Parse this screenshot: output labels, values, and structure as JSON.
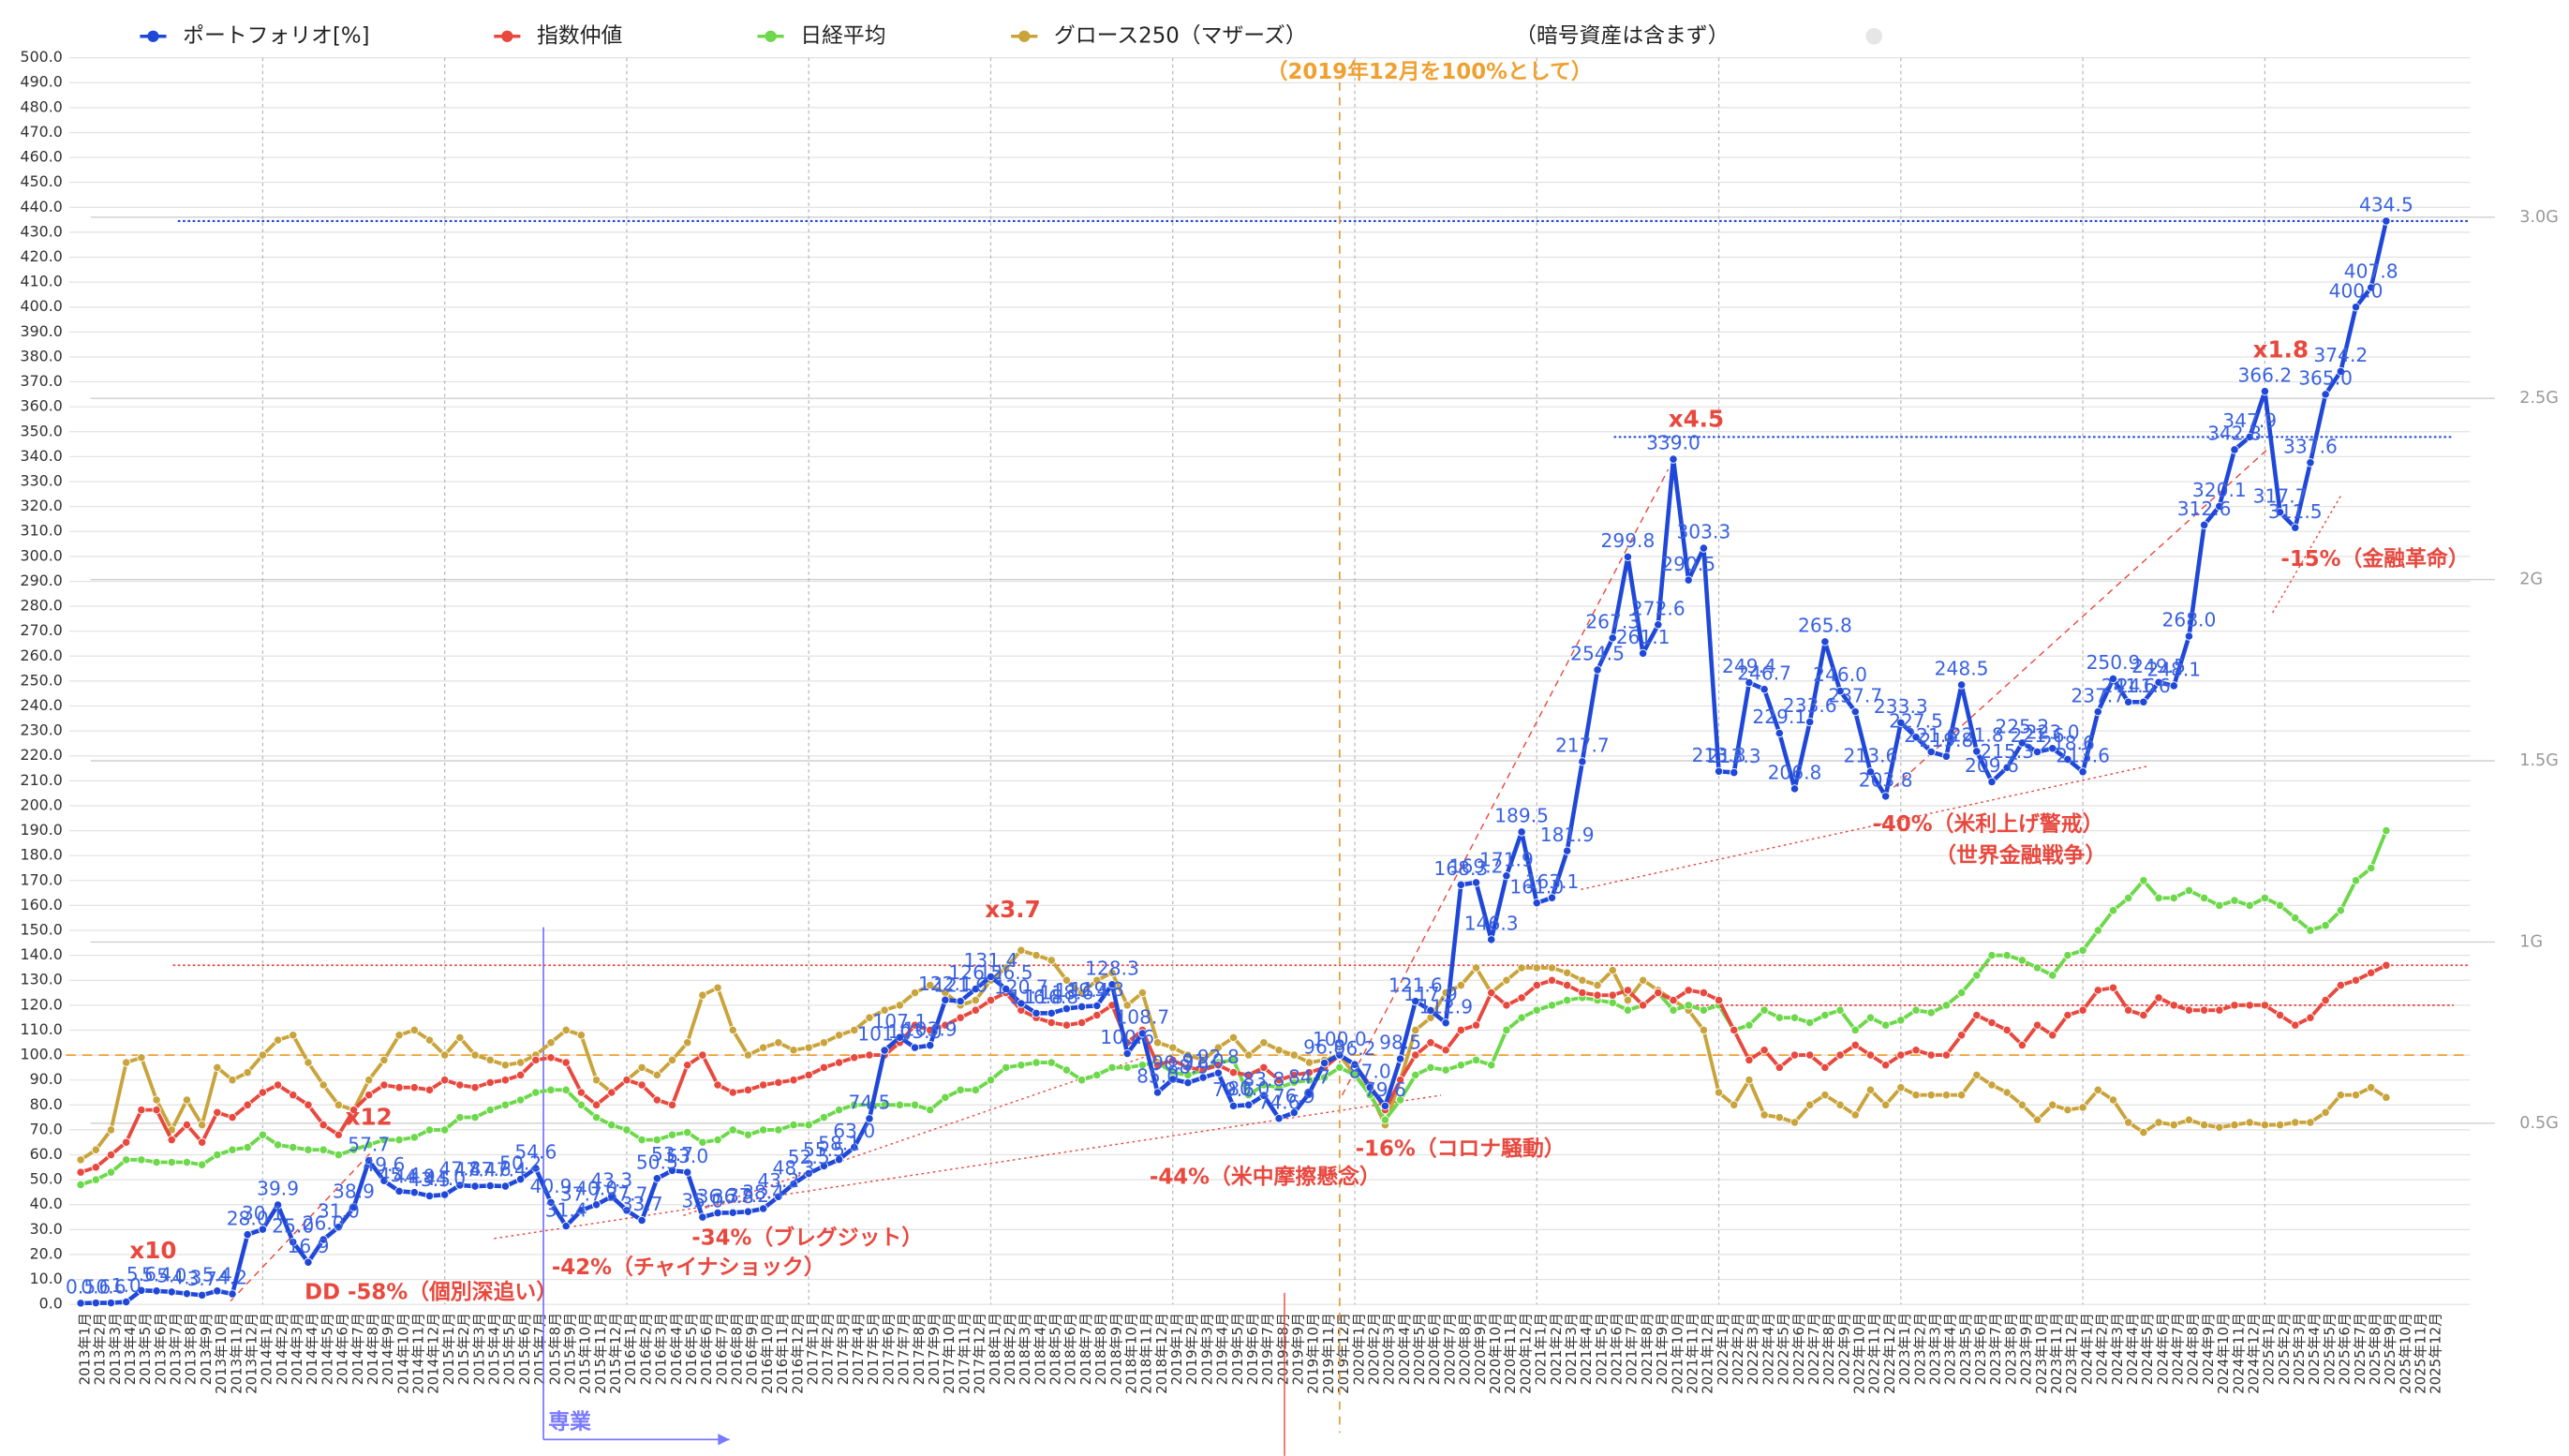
{
  "chart_data": {
    "type": "line",
    "annotations": [
      "（2019年12月を100%として）",
      "（暗号資産は含まず）",
      "x10",
      "x12",
      "x3.7",
      "x4.5",
      "x1.8",
      "DD -58%（個別深追い）",
      "-42%（チャイナショック）",
      "-34%（ブレグジット）",
      "-44%（米中摩擦懸念）",
      "-16%（コロナ騒動）",
      "-40%（米利上げ警戒）",
      "（世界金融戦争）",
      "-15%（金融革命）",
      "専業"
    ],
    "categories": [
      "2013年1月",
      "2013年2月",
      "2013年3月",
      "2013年4月",
      "2013年5月",
      "2013年6月",
      "2013年7月",
      "2013年8月",
      "2013年9月",
      "2013年10月",
      "2013年11月",
      "2013年12月",
      "2014年1月",
      "2014年2月",
      "2014年3月",
      "2014年4月",
      "2014年5月",
      "2014年6月",
      "2014年7月",
      "2014年8月",
      "2014年9月",
      "2014年10月",
      "2014年11月",
      "2014年12月",
      "2015年1月",
      "2015年2月",
      "2015年3月",
      "2015年4月",
      "2015年5月",
      "2015年6月",
      "2015年7月",
      "2015年8月",
      "2015年9月",
      "2015年10月",
      "2015年11月",
      "2015年12月",
      "2016年1月",
      "2016年2月",
      "2016年3月",
      "2016年4月",
      "2016年5月",
      "2016年6月",
      "2016年7月",
      "2016年8月",
      "2016年9月",
      "2016年10月",
      "2016年11月",
      "2016年12月",
      "2017年1月",
      "2017年2月",
      "2017年3月",
      "2017年4月",
      "2017年5月",
      "2017年6月",
      "2017年7月",
      "2017年8月",
      "2017年9月",
      "2017年10月",
      "2017年11月",
      "2017年12月",
      "2018年1月",
      "2018年2月",
      "2018年3月",
      "2018年4月",
      "2018年5月",
      "2018年6月",
      "2018年7月",
      "2018年8月",
      "2018年9月",
      "2018年10月",
      "2018年11月",
      "2018年12月",
      "2019年1月",
      "2019年2月",
      "2019年3月",
      "2019年4月",
      "2019年5月",
      "2019年6月",
      "2019年7月",
      "2019年8月",
      "2019年9月",
      "2019年10月",
      "2019年11月",
      "2019年12月",
      "2020年1月",
      "2020年2月",
      "2020年3月",
      "2020年4月",
      "2020年5月",
      "2020年6月",
      "2020年7月",
      "2020年8月",
      "2020年9月",
      "2020年10月",
      "2020年11月",
      "2020年12月",
      "2021年1月",
      "2021年2月",
      "2021年3月",
      "2021年4月",
      "2021年5月",
      "2021年6月",
      "2021年7月",
      "2021年8月",
      "2021年9月",
      "2021年10月",
      "2021年11月",
      "2021年12月",
      "2022年1月",
      "2022年2月",
      "2022年3月",
      "2022年4月",
      "2022年5月",
      "2022年6月",
      "2022年7月",
      "2022年8月",
      "2022年9月",
      "2022年10月",
      "2022年11月",
      "2022年12月",
      "2023年1月",
      "2023年2月",
      "2023年3月",
      "2023年4月",
      "2023年5月",
      "2023年6月",
      "2023年7月",
      "2023年8月",
      "2023年9月",
      "2023年10月",
      "2023年11月",
      "2023年12月",
      "2024年1月",
      "2024年2月",
      "2024年3月",
      "2024年4月",
      "2024年5月",
      "2024年6月",
      "2024年7月",
      "2024年8月",
      "2024年9月",
      "2024年10月",
      "2024年11月",
      "2024年12月",
      "2025年1月",
      "2025年2月",
      "2025年3月",
      "2025年4月",
      "2025年5月",
      "2025年6月",
      "2025年7月",
      "2025年8月",
      "2025年9月",
      "2025年10月",
      "2025年11月",
      "2025年12月"
    ],
    "series": [
      {
        "name": "ポートフォリオ[%]",
        "color": "#1f48d8",
        "label_color": "#3a62e0",
        "values": [
          0.5,
          0.6,
          0.6,
          1.0,
          5.6,
          5.4,
          5.0,
          4.3,
          3.7,
          5.4,
          4.2,
          28.0,
          30.1,
          39.9,
          25.0,
          16.9,
          26.0,
          31.0,
          38.9,
          57.7,
          49.6,
          45.4,
          44.9,
          43.5,
          44.0,
          47.8,
          47.4,
          47.6,
          47.4,
          50.2,
          54.6,
          40.9,
          31.4,
          37.7,
          40.0,
          43.3,
          37.7,
          33.7,
          50.5,
          53.7,
          53.0,
          35.0,
          36.7,
          36.8,
          37.2,
          38.4,
          43.2,
          48.3,
          52.5,
          55.5,
          58.1,
          63.0,
          74.5,
          101.9,
          107.1,
          103.0,
          103.9,
          122.1,
          121.6,
          126.5,
          131.4,
          126.5,
          120.7,
          116.8,
          116.8,
          118.6,
          119.4,
          119.8,
          128.3,
          100.6,
          108.7,
          85.0,
          90.3,
          88.9,
          91.0,
          92.8,
          79.6,
          80.0,
          83.8,
          74.6,
          76.9,
          84.7,
          96.8,
          100.0,
          96.2,
          87.0,
          79.6,
          98.5,
          121.6,
          117.9,
          112.9,
          168.3,
          169.2,
          146.3,
          171.9,
          189.5,
          161.0,
          163.1,
          181.9,
          217.7,
          254.5,
          267.3,
          299.8,
          261.1,
          272.6,
          339.0,
          290.5,
          303.3,
          213.8,
          213.3,
          249.4,
          246.7,
          229.1,
          206.8,
          233.6,
          265.8,
          246.0,
          237.7,
          213.6,
          203.8,
          233.3,
          227.5,
          221.6,
          219.8,
          248.5,
          221.8,
          209.6,
          215.3,
          225.2,
          221.6,
          223.0,
          218.6,
          213.6,
          237.7,
          250.9,
          241.6,
          241.6,
          249.5,
          248.1,
          268.0,
          312.6,
          320.1,
          342.8,
          347.9,
          366.2,
          317.7,
          311.5,
          337.6,
          365.0,
          374.2,
          400.0,
          407.8,
          434.5,
          null,
          null,
          null
        ],
        "value_labels": [
          "0.5",
          "0.6",
          "0.6",
          "1.0",
          "5.6",
          "5.4",
          "5.0",
          "4.3",
          "3.7",
          "5.4",
          "4.2",
          "28.0",
          "30.1",
          "39.9",
          "25.0",
          "16.9",
          "26.0",
          "31.0",
          "38.9",
          "57.7",
          "49.6",
          "45.4",
          "44.9",
          "43.5",
          "44.0",
          "47.8",
          "47.4",
          "47.6",
          "47.4",
          "50.2",
          "54.6",
          "40.9",
          "31.4",
          "37.7",
          "40.0",
          "43.3",
          "37.7",
          "33.7",
          "50.5",
          "53.7",
          "53.0",
          "35.0",
          "36.7",
          "36.8",
          "37.2",
          "38.4",
          "43.2",
          "48.3",
          "52.5",
          "55.5",
          "58.1",
          "63.0",
          "74.5",
          "101.9",
          "107.1",
          "103.0",
          "103.9",
          "122.1",
          "121.6",
          "126.5",
          "131.4",
          "126.5",
          "120.7",
          "116.8",
          "116.8",
          "118.6",
          "119.4",
          "119.8",
          "128.3",
          "100.6",
          "108.7",
          "85.0",
          "90.3",
          "88.9",
          "91.0",
          "92.8",
          "79.6",
          "80.0",
          "83.8",
          "74.6",
          "76.9",
          "84.7",
          "96.8",
          "100.0",
          "96.2",
          "87.0",
          "79.6",
          "98.5",
          "121.6",
          "117.9",
          "112.9",
          "168.3",
          "169.2",
          "146.3",
          "171.9",
          "189.5",
          "161.0",
          "163.1",
          "181.9",
          "217.7",
          "254.5",
          "267.3",
          "299.8",
          "261.1",
          "272.6",
          "339.0",
          "290.5",
          "303.3",
          "213.8",
          "213.3",
          "249.4",
          "246.7",
          "229.1",
          "206.8",
          "233.6",
          "265.8",
          "246.0",
          "237.7",
          "213.6",
          "203.8",
          "233.3",
          "227.5",
          "221.6",
          "219.8",
          "248.5",
          "221.8",
          "209.6",
          "215.3",
          "225.2",
          "221.6",
          "223.0",
          "218.6",
          "213.6",
          "237.7",
          "250.9",
          "241.6",
          "241.6",
          "249.5",
          "248.1",
          "268.0",
          "312.6",
          "320.1",
          "342.8",
          "347.9",
          "366.2",
          "317.7",
          "311.5",
          "337.6",
          "365.0",
          "374.2",
          "400.0",
          "407.8",
          "434.5",
          null,
          null,
          null
        ]
      },
      {
        "name": "指数仲値",
        "color": "#e8483e",
        "values": [
          53,
          55,
          60,
          65,
          78,
          78,
          66,
          72,
          65,
          77,
          75,
          80,
          85,
          88,
          84,
          80,
          72,
          68,
          78,
          84,
          88,
          87,
          87,
          86,
          90,
          88,
          87,
          89,
          90,
          92,
          98,
          99,
          97,
          85,
          80,
          85,
          90,
          88,
          82,
          80,
          96,
          100,
          88,
          85,
          86,
          88,
          89,
          90,
          92,
          95,
          97,
          99,
          100,
          100,
          105,
          112,
          110,
          112,
          115,
          118,
          122,
          125,
          118,
          115,
          113,
          112,
          113,
          116,
          120,
          105,
          110,
          96,
          98,
          95,
          94,
          96,
          93,
          92,
          95,
          90,
          92,
          93,
          95,
          100,
          96,
          88,
          78,
          90,
          100,
          105,
          102,
          110,
          112,
          125,
          120,
          123,
          128,
          130,
          128,
          125,
          124,
          124,
          126,
          120,
          125,
          122,
          126,
          125,
          122,
          110,
          98,
          102,
          95,
          100,
          100,
          95,
          100,
          104,
          100,
          96,
          100,
          102,
          100,
          100,
          108,
          116,
          113,
          110,
          104,
          112,
          108,
          116,
          118,
          126,
          127,
          118,
          116,
          123,
          120,
          118,
          118,
          118,
          120,
          120,
          120,
          116,
          112,
          115,
          122,
          128,
          130,
          133,
          136,
          null,
          null,
          null
        ]
      },
      {
        "name": "日経平均",
        "color": "#6cd84a",
        "values": [
          48,
          50,
          53,
          58,
          58,
          57,
          57,
          57,
          56,
          60,
          62,
          63,
          68,
          64,
          63,
          62,
          62,
          60,
          62,
          64,
          66,
          66,
          67,
          70,
          70,
          75,
          75,
          78,
          80,
          82,
          85,
          86,
          86,
          80,
          75,
          72,
          70,
          66,
          66,
          68,
          69,
          65,
          66,
          70,
          68,
          70,
          70,
          72,
          72,
          75,
          78,
          80,
          80,
          80,
          80,
          80,
          78,
          83,
          86,
          86,
          90,
          95,
          96,
          97,
          97,
          94,
          90,
          92,
          95,
          95,
          96,
          97,
          93,
          92,
          94,
          97,
          98,
          84,
          88,
          87,
          89,
          90,
          91,
          95,
          92,
          84,
          74,
          82,
          92,
          95,
          94,
          96,
          98,
          96,
          110,
          115,
          118,
          120,
          122,
          123,
          122,
          121,
          118,
          120,
          125,
          118,
          120,
          118,
          120,
          110,
          112,
          118,
          115,
          115,
          113,
          116,
          118,
          110,
          115,
          112,
          114,
          118,
          117,
          120,
          125,
          132,
          140,
          140,
          138,
          135,
          132,
          140,
          142,
          150,
          158,
          163,
          170,
          163,
          163,
          166,
          163,
          160,
          162,
          160,
          163,
          160,
          155,
          150,
          152,
          158,
          170,
          175,
          190,
          null,
          null,
          null
        ]
      },
      {
        "name": "グロース250（マザーズ）",
        "color": "#c9a43c",
        "values": [
          58,
          62,
          70,
          97,
          99,
          82,
          70,
          82,
          72,
          95,
          90,
          93,
          100,
          106,
          108,
          97,
          88,
          80,
          78,
          90,
          98,
          108,
          110,
          106,
          100,
          107,
          100,
          98,
          96,
          97,
          100,
          105,
          110,
          108,
          90,
          85,
          90,
          95,
          92,
          98,
          105,
          124,
          127,
          110,
          100,
          103,
          105,
          102,
          103,
          105,
          108,
          110,
          115,
          118,
          120,
          125,
          128,
          125,
          120,
          122,
          130,
          135,
          142,
          140,
          138,
          130,
          125,
          130,
          133,
          120,
          125,
          105,
          103,
          100,
          98,
          103,
          107,
          100,
          105,
          102,
          100,
          97,
          98,
          100,
          92,
          85,
          72,
          90,
          110,
          115,
          125,
          128,
          135,
          125,
          130,
          135,
          135,
          135,
          133,
          130,
          128,
          134,
          122,
          130,
          126,
          122,
          118,
          110,
          85,
          80,
          90,
          76,
          75,
          73,
          80,
          84,
          80,
          76,
          86,
          80,
          87,
          84,
          84,
          84,
          84,
          92,
          88,
          85,
          80,
          74,
          80,
          78,
          79,
          86,
          82,
          73,
          69,
          73,
          72,
          74,
          72,
          71,
          72,
          73,
          72,
          72,
          73,
          73,
          77,
          84,
          84,
          87,
          83,
          null,
          null,
          null
        ]
      }
    ],
    "ylim": [
      0,
      500
    ],
    "yticks": [
      {
        "value": 0,
        "label": "0.0"
      },
      {
        "value": 10,
        "label": "10.0"
      },
      {
        "value": 20,
        "label": "20.0"
      },
      {
        "value": 30,
        "label": "30.0"
      },
      {
        "value": 40,
        "label": "40.0"
      },
      {
        "value": 50,
        "label": "50.0"
      },
      {
        "value": 60,
        "label": "60.0"
      },
      {
        "value": 70,
        "label": "70.0"
      },
      {
        "value": 80,
        "label": "80.0"
      },
      {
        "value": 90,
        "label": "90.0"
      },
      {
        "value": 100,
        "label": "100.0"
      },
      {
        "value": 110,
        "label": "110.0"
      },
      {
        "value": 120,
        "label": "120.0"
      },
      {
        "value": 130,
        "label": "130.0"
      },
      {
        "value": 140,
        "label": "140.0"
      },
      {
        "value": 150,
        "label": "150.0"
      },
      {
        "value": 160,
        "label": "160.0"
      },
      {
        "value": 170,
        "label": "170.0"
      },
      {
        "value": 180,
        "label": "180.0"
      },
      {
        "value": 190,
        "label": "190.0"
      },
      {
        "value": 200,
        "label": "200.0"
      },
      {
        "value": 210,
        "label": "210.0"
      },
      {
        "value": 220,
        "label": "220.0"
      },
      {
        "value": 230,
        "label": "230.0"
      },
      {
        "value": 240,
        "label": "240.0"
      },
      {
        "value": 250,
        "label": "250.0"
      },
      {
        "value": 260,
        "label": "260.0"
      },
      {
        "value": 270,
        "label": "270.0"
      },
      {
        "value": 280,
        "label": "280.0"
      },
      {
        "value": 290,
        "label": "290.0"
      },
      {
        "value": 300,
        "label": "300.0"
      },
      {
        "value": 310,
        "label": "310.0"
      },
      {
        "value": 320,
        "label": "320.0"
      },
      {
        "value": 330,
        "label": "330.0"
      },
      {
        "value": 340,
        "label": "340.0"
      },
      {
        "value": 350,
        "label": "350.0"
      },
      {
        "value": 360,
        "label": "360.0"
      },
      {
        "value": 370,
        "label": "370.0"
      },
      {
        "value": 380,
        "label": "380.0"
      },
      {
        "value": 390,
        "label": "390.0"
      },
      {
        "value": 400,
        "label": "400.0"
      },
      {
        "value": 410,
        "label": "410.0"
      },
      {
        "value": 420,
        "label": "420.0"
      },
      {
        "value": 430,
        "label": "430.0"
      },
      {
        "value": 440,
        "label": "440.0"
      },
      {
        "value": 450,
        "label": "450.0"
      },
      {
        "value": 460,
        "label": "460.0"
      },
      {
        "value": 470,
        "label": "470.0"
      },
      {
        "value": 480,
        "label": "480.0"
      },
      {
        "value": 490,
        "label": "490.0"
      },
      {
        "value": 500,
        "label": "500.0"
      }
    ],
    "y2lim": [
      0,
      3.44
    ],
    "y2ticks": [
      {
        "value": 0.5,
        "label": "0.5G"
      },
      {
        "value": 1,
        "label": "1G"
      },
      {
        "value": 1.5,
        "label": "1.5G"
      },
      {
        "value": 2,
        "label": "2G"
      },
      {
        "value": 2.5,
        "label": "2.5G"
      },
      {
        "value": 3,
        "label": "3.0G"
      }
    ],
    "grid": true,
    "legend": "top"
  }
}
